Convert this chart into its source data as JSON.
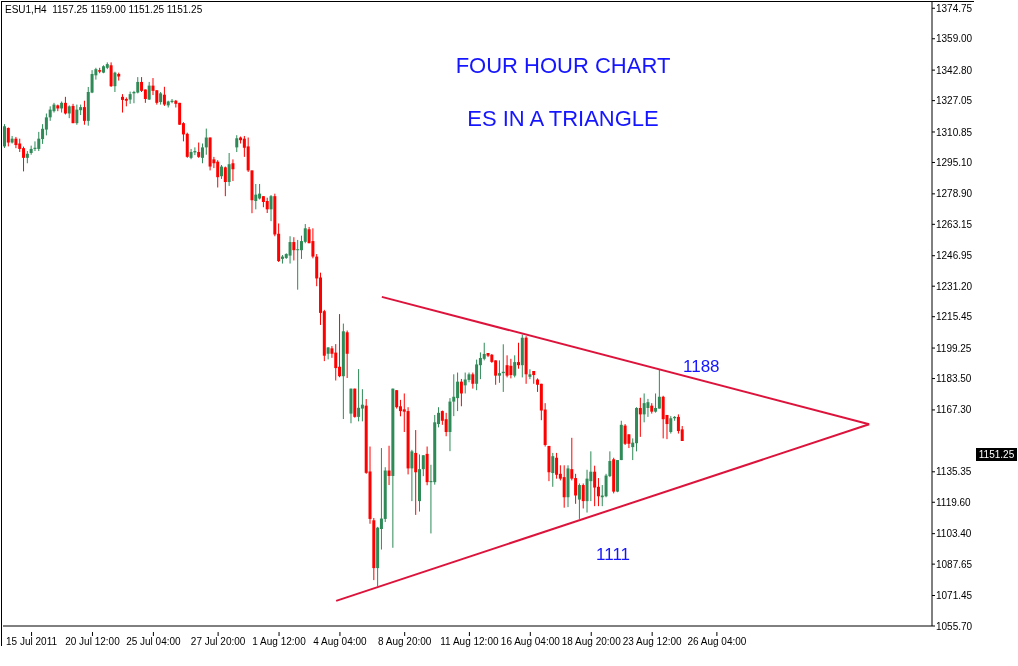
{
  "chart_data": {
    "type": "candlestick",
    "title": "FOUR HOUR CHART",
    "subtitle": "ES IN A TRIANGLE",
    "categories": [
      null,
      null,
      null,
      null,
      null,
      null,
      null,
      "15 Jul 2011",
      null,
      null,
      null,
      null,
      null,
      null,
      null,
      null,
      null,
      null,
      null,
      null,
      null,
      null,
      null,
      "20 Jul 12:00",
      null,
      null,
      null,
      null,
      null,
      null,
      null,
      null,
      null,
      null,
      null,
      null,
      null,
      null,
      null,
      "25 Jul 04:00",
      null,
      null,
      null,
      null,
      null,
      null,
      null,
      null,
      null,
      null,
      null,
      null,
      null,
      null,
      null,
      null,
      "27 Jul 20:00",
      null,
      null,
      null,
      null,
      null,
      null,
      null,
      null,
      null,
      null,
      null,
      null,
      null,
      null,
      null,
      "1 Aug 12:00",
      null,
      null,
      null,
      null,
      null,
      null,
      null,
      null,
      null,
      null,
      null,
      null,
      null,
      null,
      null,
      "4 Aug 04:00",
      null,
      null,
      null,
      null,
      null,
      null,
      null,
      null,
      null,
      null,
      null,
      null,
      null,
      null,
      null,
      null,
      "8 Aug 20:00",
      null,
      null,
      null,
      null,
      null,
      null,
      null,
      null,
      null,
      null,
      null,
      null,
      null,
      null,
      null,
      null,
      "11 Aug 12:00",
      null,
      null,
      null,
      null,
      null,
      null,
      null,
      null,
      null,
      null,
      null,
      null,
      null,
      null,
      null,
      "16 Aug 04:00",
      null,
      null,
      null,
      null,
      null,
      null,
      null,
      null,
      null,
      null,
      null,
      null,
      null,
      null,
      null,
      "18 Aug 20:00",
      null,
      null,
      null,
      null,
      null,
      null,
      null,
      null,
      null,
      null,
      null,
      null,
      null,
      null,
      null,
      "23 Aug 12:00",
      null,
      null,
      null,
      null,
      null,
      null,
      null,
      null,
      null,
      null,
      null,
      null,
      null,
      null,
      null,
      null,
      "26 Aug 04:00",
      null,
      null,
      null,
      null,
      null,
      null,
      null,
      null,
      null,
      null,
      null,
      null,
      null,
      null,
      null,
      null,
      null,
      null,
      null,
      null,
      null,
      null,
      null,
      null,
      null,
      null,
      null,
      null,
      null,
      null,
      null,
      null,
      null,
      null,
      null,
      null,
      null,
      null,
      null,
      null,
      null,
      null,
      null,
      null,
      null,
      null,
      null,
      null,
      null,
      null,
      null,
      null,
      null,
      null,
      null,
      null
    ],
    "ohlc": [
      [
        1303.4,
        1314.9,
        1302.6,
        1313.8
      ],
      [
        1312.9,
        1313.2,
        1303.4,
        1305.4
      ],
      [
        1305.4,
        1308.8,
        1304.9,
        1307.4
      ],
      [
        1307.4,
        1308.3,
        1302.5,
        1304.1
      ],
      [
        1304.9,
        1307.4,
        1300.5,
        1302.1
      ],
      [
        1302.5,
        1303.3,
        1290.5,
        1297.5
      ],
      [
        1297.5,
        1301.0,
        1294.7,
        1299.6
      ],
      [
        1300.0,
        1303.8,
        1299.1,
        1302.1
      ],
      [
        1302.1,
        1306.0,
        1301.0,
        1302.7
      ],
      [
        1302.1,
        1310.9,
        1301.0,
        1307.4
      ],
      [
        1307.2,
        1314.9,
        1304.7,
        1312.5
      ],
      [
        1312.1,
        1320.4,
        1309.1,
        1318.4
      ],
      [
        1318.4,
        1324.1,
        1316.6,
        1322.4
      ],
      [
        1321.6,
        1325.9,
        1320.9,
        1325.0
      ],
      [
        1324.6,
        1325.0,
        1321.6,
        1323.0
      ],
      [
        1323.0,
        1326.6,
        1320.9,
        1325.9
      ],
      [
        1325.9,
        1329.0,
        1319.9,
        1320.4
      ],
      [
        1320.4,
        1324.6,
        1318.0,
        1324.1
      ],
      [
        1324.3,
        1325.4,
        1315.4,
        1315.4
      ],
      [
        1315.4,
        1325.0,
        1314.6,
        1322.4
      ],
      [
        1322.1,
        1325.0,
        1319.6,
        1323.7
      ],
      [
        1323.7,
        1327.0,
        1314.6,
        1316.6
      ],
      [
        1316.6,
        1334.1,
        1314.1,
        1331.5
      ],
      [
        1331.2,
        1342.8,
        1330.9,
        1340.8
      ],
      [
        1340.1,
        1344.0,
        1337.9,
        1343.3
      ],
      [
        1342.8,
        1344.0,
        1341.2,
        1342.0
      ],
      [
        1341.5,
        1345.3,
        1341.2,
        1344.8
      ],
      [
        1344.0,
        1346.8,
        1343.3,
        1345.9
      ],
      [
        1345.3,
        1346.8,
        1334.1,
        1334.5
      ],
      [
        1334.5,
        1342.0,
        1331.5,
        1341.5
      ],
      [
        1340.8,
        1341.5,
        1337.4,
        1339.5
      ],
      [
        1329.0,
        1330.4,
        1320.9,
        1327.4
      ],
      [
        1327.9,
        1328.7,
        1324.1,
        1327.0
      ],
      [
        1327.6,
        1331.7,
        1325.4,
        1330.4
      ],
      [
        1330.8,
        1332.1,
        1325.7,
        1331.5
      ],
      [
        1331.2,
        1339.2,
        1330.8,
        1336.7
      ],
      [
        1336.7,
        1339.2,
        1331.5,
        1332.1
      ],
      [
        1332.8,
        1332.8,
        1325.9,
        1327.9
      ],
      [
        1327.6,
        1336.7,
        1327.4,
        1334.8
      ],
      [
        1334.8,
        1338.7,
        1329.9,
        1332.1
      ],
      [
        1332.4,
        1332.4,
        1325.0,
        1325.9
      ],
      [
        1326.3,
        1331.5,
        1325.0,
        1330.8
      ],
      [
        1330.1,
        1334.2,
        1324.3,
        1325.0
      ],
      [
        1324.6,
        1327.0,
        1323.5,
        1326.6
      ],
      [
        1326.3,
        1327.9,
        1325.7,
        1327.0
      ],
      [
        1327.0,
        1327.4,
        1323.5,
        1325.4
      ],
      [
        1325.9,
        1325.9,
        1314.6,
        1314.6
      ],
      [
        1315.4,
        1315.9,
        1306.0,
        1309.6
      ],
      [
        1309.9,
        1310.5,
        1297.5,
        1298.0
      ],
      [
        1297.5,
        1302.1,
        1296.8,
        1300.5
      ],
      [
        1300.3,
        1302.9,
        1298.9,
        1301.0
      ],
      [
        1300.5,
        1305.4,
        1297.5,
        1298.0
      ],
      [
        1297.5,
        1304.9,
        1294.7,
        1302.9
      ],
      [
        1302.9,
        1312.6,
        1299.1,
        1308.0
      ],
      [
        1308.0,
        1308.0,
        1291.0,
        1293.0
      ],
      [
        1296.7,
        1298.0,
        1292.2,
        1294.7
      ],
      [
        1295.5,
        1296.3,
        1282.2,
        1287.5
      ],
      [
        1288.0,
        1293.8,
        1286.6,
        1293.0
      ],
      [
        1292.6,
        1293.0,
        1277.7,
        1285.0
      ],
      [
        1285.0,
        1300.0,
        1283.0,
        1294.2
      ],
      [
        1294.7,
        1296.7,
        1285.5,
        1291.6
      ],
      [
        1302.9,
        1309.2,
        1300.5,
        1307.6
      ],
      [
        1308.0,
        1308.5,
        1304.9,
        1306.6
      ],
      [
        1307.4,
        1308.8,
        1298.0,
        1302.7
      ],
      [
        1303.4,
        1308.0,
        1290.2,
        1291.0
      ],
      [
        1291.0,
        1291.0,
        1268.9,
        1275.6
      ],
      [
        1275.2,
        1284.0,
        1270.9,
        1278.5
      ],
      [
        1276.5,
        1284.0,
        1276.0,
        1279.0
      ],
      [
        1277.7,
        1277.7,
        1272.0,
        1274.7
      ],
      [
        1275.2,
        1276.9,
        1269.0,
        1270.9
      ],
      [
        1270.9,
        1278.3,
        1264.8,
        1277.7
      ],
      [
        1277.7,
        1279.0,
        1257.0,
        1257.9
      ],
      [
        1258.3,
        1263.6,
        1243.7,
        1244.2
      ],
      [
        1245.3,
        1247.3,
        1242.9,
        1246.5
      ],
      [
        1245.8,
        1248.2,
        1245.3,
        1247.8
      ],
      [
        1247.0,
        1257.0,
        1242.9,
        1254.0
      ],
      [
        1254.0,
        1256.5,
        1244.5,
        1249.8
      ],
      [
        1249.8,
        1255.1,
        1229.4,
        1250.3
      ],
      [
        1249.8,
        1257.3,
        1245.3,
        1254.5
      ],
      [
        1254.1,
        1263.3,
        1253.4,
        1261.1
      ],
      [
        1260.6,
        1261.8,
        1253.4,
        1253.4
      ],
      [
        1254.5,
        1261.1,
        1245.6,
        1246.5
      ],
      [
        1246.5,
        1247.8,
        1231.2,
        1235.2
      ],
      [
        1235.7,
        1238.2,
        1211.2,
        1217.4
      ],
      [
        1218.3,
        1219.0,
        1192.5,
        1195.3
      ],
      [
        1196.3,
        1199.6,
        1193.4,
        1199.6
      ],
      [
        1199.1,
        1200.3,
        1194.2,
        1196.3
      ],
      [
        1196.9,
        1201.3,
        1182.5,
        1188.9
      ],
      [
        1189.6,
        1216.8,
        1184.2,
        1184.7
      ],
      [
        1184.7,
        1211.9,
        1162.6,
        1207.9
      ],
      [
        1207.4,
        1208.3,
        1183.8,
        1196.3
      ],
      [
        1165.4,
        1178.3,
        1160.4,
        1178.3
      ],
      [
        1178.3,
        1178.3,
        1163.3,
        1163.7
      ],
      [
        1163.7,
        1188.4,
        1161.4,
        1168.4
      ],
      [
        1168.0,
        1178.0,
        1161.4,
        1170.0
      ],
      [
        1169.5,
        1172.9,
        1134.3,
        1134.8
      ],
      [
        1135.5,
        1148.4,
        1108.5,
        1111.0
      ],
      [
        1110.3,
        1111.5,
        1079.4,
        1085.6
      ],
      [
        1085.6,
        1106.9,
        1076.2,
        1106.5
      ],
      [
        1105.8,
        1147.6,
        1095.2,
        1111.2
      ],
      [
        1111.0,
        1137.7,
        1109.4,
        1136.0
      ],
      [
        1136.0,
        1148.8,
        1128.5,
        1133.2
      ],
      [
        1133.2,
        1178.3,
        1096.1,
        1178.3
      ],
      [
        1177.5,
        1177.5,
        1168.0,
        1168.7
      ],
      [
        1169.2,
        1172.5,
        1164.0,
        1166.7
      ],
      [
        1167.6,
        1175.8,
        1155.9,
        1166.4
      ],
      [
        1166.7,
        1168.7,
        1134.0,
        1137.1
      ],
      [
        1137.1,
        1146.7,
        1120.2,
        1145.9
      ],
      [
        1145.1,
        1156.9,
        1113.1,
        1135.1
      ],
      [
        1120.2,
        1144.3,
        1114.8,
        1136.7
      ],
      [
        1136.7,
        1143.9,
        1133.1,
        1143.9
      ],
      [
        1144.6,
        1148.4,
        1128.4,
        1130.0
      ],
      [
        1130.0,
        1139.0,
        1103.5,
        1130.6
      ],
      [
        1130.0,
        1164.7,
        1128.7,
        1160.9
      ],
      [
        1160.0,
        1168.7,
        1158.3,
        1165.8
      ],
      [
        1166.7,
        1167.0,
        1159.6,
        1161.7
      ],
      [
        1162.5,
        1165.8,
        1153.7,
        1155.9
      ],
      [
        1155.9,
        1173.4,
        1146.0,
        1171.6
      ],
      [
        1171.6,
        1185.7,
        1164.1,
        1174.1
      ],
      [
        1173.4,
        1186.6,
        1166.7,
        1181.9
      ],
      [
        1181.9,
        1183.3,
        1169.2,
        1175.8
      ],
      [
        1180.0,
        1186.6,
        1175.8,
        1183.0
      ],
      [
        1182.8,
        1186.6,
        1181.6,
        1185.7
      ],
      [
        1185.7,
        1186.6,
        1178.3,
        1180.8
      ],
      [
        1180.8,
        1193.3,
        1177.5,
        1190.8
      ],
      [
        1190.4,
        1197.0,
        1183.2,
        1194.1
      ],
      [
        1193.7,
        1202.0,
        1192.9,
        1196.2
      ],
      [
        1196.7,
        1196.7,
        1194.6,
        1195.3
      ],
      [
        1195.8,
        1196.2,
        1191.6,
        1192.1
      ],
      [
        1192.9,
        1192.9,
        1180.3,
        1185.0
      ],
      [
        1185.0,
        1192.9,
        1181.3,
        1186.3
      ],
      [
        1186.3,
        1201.2,
        1176.6,
        1187.0
      ],
      [
        1190.4,
        1195.5,
        1184.1,
        1185.0
      ],
      [
        1190.1,
        1193.7,
        1183.6,
        1185.3
      ],
      [
        1185.0,
        1195.5,
        1184.1,
        1192.0
      ],
      [
        1192.0,
        1202.0,
        1188.6,
        1190.4
      ],
      [
        1190.4,
        1206.2,
        1184.1,
        1204.6
      ],
      [
        1204.6,
        1205.4,
        1180.8,
        1185.7
      ],
      [
        1184.4,
        1188.3,
        1183.2,
        1185.7
      ],
      [
        1187.4,
        1187.4,
        1180.8,
        1185.3
      ],
      [
        1183.0,
        1183.6,
        1176.6,
        1180.3
      ],
      [
        1180.8,
        1180.8,
        1162.0,
        1167.0
      ],
      [
        1167.5,
        1170.8,
        1148.4,
        1149.2
      ],
      [
        1148.7,
        1148.7,
        1130.5,
        1135.1
      ],
      [
        1134.7,
        1145.1,
        1127.6,
        1143.4
      ],
      [
        1142.6,
        1145.1,
        1131.8,
        1133.8
      ],
      [
        1134.3,
        1138.7,
        1130.9,
        1131.8
      ],
      [
        1132.6,
        1138.7,
        1116.8,
        1122.2
      ],
      [
        1122.2,
        1138.7,
        1117.1,
        1137.1
      ],
      [
        1136.7,
        1152.9,
        1130.9,
        1131.8
      ],
      [
        1132.1,
        1134.3,
        1118.8,
        1123.1
      ],
      [
        1121.0,
        1129.3,
        1111.0,
        1128.5
      ],
      [
        1128.5,
        1129.3,
        1116.4,
        1120.2
      ],
      [
        1120.2,
        1136.4,
        1114.3,
        1131.8
      ],
      [
        1130.5,
        1145.9,
        1120.2,
        1135.4
      ],
      [
        1135.4,
        1138.5,
        1117.6,
        1127.2
      ],
      [
        1127.6,
        1132.1,
        1117.6,
        1122.7
      ],
      [
        1122.2,
        1128.5,
        1117.6,
        1123.1
      ],
      [
        1122.7,
        1134.3,
        1122.2,
        1133.4
      ],
      [
        1133.1,
        1145.9,
        1132.6,
        1140.9
      ],
      [
        1141.8,
        1142.6,
        1124.2,
        1125.1
      ],
      [
        1125.1,
        1141.4,
        1124.8,
        1141.4
      ],
      [
        1141.4,
        1161.7,
        1141.4,
        1159.6
      ],
      [
        1159.2,
        1160.0,
        1149.2,
        1149.8
      ],
      [
        1154.7,
        1154.7,
        1147.6,
        1149.8
      ],
      [
        1148.1,
        1152.6,
        1141.4,
        1150.4
      ],
      [
        1150.1,
        1168.7,
        1145.9,
        1168.3
      ],
      [
        1168.3,
        1173.6,
        1153.4,
        1165.0
      ],
      [
        1165.0,
        1175.8,
        1160.9,
        1170.8
      ],
      [
        1168.3,
        1173.0,
        1163.7,
        1171.3
      ],
      [
        1169.5,
        1170.8,
        1165.4,
        1166.4
      ],
      [
        1166.4,
        1175.8,
        1165.9,
        1168.3
      ],
      [
        1168.0,
        1188.0,
        1168.0,
        1174.1
      ],
      [
        1174.1,
        1174.6,
        1152.6,
        1162.5
      ],
      [
        1164.7,
        1164.7,
        1152.2,
        1160.0
      ],
      [
        1155.9,
        1164.1,
        1155.1,
        1163.0
      ],
      [
        1163.0,
        1164.1,
        1161.7,
        1163.7
      ],
      [
        1163.7,
        1165.0,
        1155.1,
        1156.4
      ],
      [
        1157.25,
        1159.0,
        1151.25,
        1151.25
      ],
      null,
      null,
      null,
      null,
      null,
      null,
      null,
      null,
      null,
      null,
      null,
      null,
      null,
      null,
      null,
      null,
      null,
      null,
      null,
      null,
      null,
      null,
      null,
      null,
      null,
      null,
      null,
      null,
      null,
      null,
      null,
      null,
      null,
      null,
      null,
      null,
      null,
      null,
      null,
      null,
      null,
      null,
      null,
      null,
      null,
      null,
      null,
      null,
      null,
      null,
      null,
      null,
      null,
      null,
      null,
      null,
      null,
      null,
      null,
      null,
      null,
      null,
      null,
      null,
      null
    ],
    "colors": [
      "#2e8b57",
      "#ff0000",
      "#2e8b57",
      "#ff0000",
      "#ff0000",
      "#ff0000",
      "#2e8b57",
      "#2e8b57",
      "#2e8b57",
      "#2e8b57",
      "#2e8b57",
      "#2e8b57",
      "#2e8b57",
      "#2e8b57",
      "#ff0000",
      "#2e8b57",
      "#ff0000",
      "#2e8b57",
      "#ff0000",
      "#2e8b57",
      "#2e8b57",
      "#ff0000",
      "#2e8b57",
      "#2e8b57",
      "#2e8b57",
      "#ff0000",
      "#2e8b57",
      "#2e8b57",
      "#ff0000",
      "#2e8b57",
      "#ff0000",
      "#ff0000",
      "#ff0000",
      "#2e8b57",
      "#2e8b57",
      "#2e8b57",
      "#ff0000",
      "#ff0000",
      "#2e8b57",
      "#ff0000",
      "#ff0000",
      "#2e8b57",
      "#ff0000",
      "#2e8b57",
      "#2e8b57",
      "#ff0000",
      "#ff0000",
      "#ff0000",
      "#ff0000",
      "#2e8b57",
      "#2e8b57",
      "#ff0000",
      "#2e8b57",
      "#2e8b57",
      "#ff0000",
      "#ff0000",
      "#ff0000",
      "#2e8b57",
      "#ff0000",
      "#2e8b57",
      "#ff0000",
      "#2e8b57",
      "#ff0000",
      "#ff0000",
      "#ff0000",
      "#ff0000",
      "#2e8b57",
      "#2e8b57",
      "#ff0000",
      "#ff0000",
      "#2e8b57",
      "#ff0000",
      "#ff0000",
      "#2e8b57",
      "#2e8b57",
      "#2e8b57",
      "#ff0000",
      "#2e8b57",
      "#2e8b57",
      "#2e8b57",
      "#ff0000",
      "#ff0000",
      "#ff0000",
      "#ff0000",
      "#ff0000",
      "#2e8b57",
      "#ff0000",
      "#ff0000",
      "#ff0000",
      "#2e8b57",
      "#ff0000",
      "#2e8b57",
      "#ff0000",
      "#2e8b57",
      "#2e8b57",
      "#ff0000",
      "#ff0000",
      "#ff0000",
      "#2e8b57",
      "#2e8b57",
      "#2e8b57",
      "#ff0000",
      "#2e8b57",
      "#ff0000",
      "#ff0000",
      "#ff0000",
      "#ff0000",
      "#2e8b57",
      "#ff0000",
      "#2e8b57",
      "#2e8b57",
      "#ff0000",
      "#2e8b57",
      "#2e8b57",
      "#2e8b57",
      "#ff0000",
      "#ff0000",
      "#2e8b57",
      "#2e8b57",
      "#2e8b57",
      "#ff0000",
      "#2e8b57",
      "#2e8b57",
      "#ff0000",
      "#2e8b57",
      "#2e8b57",
      "#2e8b57",
      "#ff0000",
      "#ff0000",
      "#ff0000",
      "#2e8b57",
      "#2e8b57",
      "#ff0000",
      "#ff0000",
      "#2e8b57",
      "#ff0000",
      "#2e8b57",
      "#ff0000",
      "#2e8b57",
      "#ff0000",
      "#ff0000",
      "#ff0000",
      "#ff0000",
      "#ff0000",
      "#2e8b57",
      "#ff0000",
      "#ff0000",
      "#ff0000",
      "#2e8b57",
      "#ff0000",
      "#ff0000",
      "#2e8b57",
      "#ff0000",
      "#2e8b57",
      "#2e8b57",
      "#ff0000",
      "#ff0000",
      "#2e8b57",
      "#2e8b57",
      "#2e8b57",
      "#ff0000",
      "#2e8b57",
      "#2e8b57",
      "#ff0000",
      "#ff0000",
      "#2e8b57",
      "#2e8b57",
      "#ff0000",
      "#2e8b57",
      "#2e8b57",
      "#ff0000",
      "#2e8b57",
      "#2e8b57",
      "#ff0000",
      "#ff0000",
      "#2e8b57",
      "#2e8b57",
      "#ff0000",
      "#ff0000",
      null,
      null,
      null,
      null,
      null,
      null,
      null,
      null,
      null,
      null,
      null,
      null,
      null,
      null,
      null,
      null,
      null,
      null,
      null,
      null,
      null,
      null,
      null,
      null,
      null,
      null,
      null,
      null,
      null,
      null,
      null,
      null,
      null,
      null,
      null,
      null,
      null,
      null,
      null,
      null,
      null,
      null,
      null,
      null,
      null,
      null,
      null,
      null,
      null,
      null,
      null,
      null,
      null,
      null,
      null,
      null,
      null,
      null,
      null,
      null,
      null,
      null,
      null,
      null,
      null
    ],
    "series": [
      {
        "type": "line",
        "color": "#dc143c",
        "values": [
          null,
          null,
          null,
          null,
          null,
          null,
          null,
          null,
          null,
          null,
          null,
          null,
          null,
          null,
          null,
          null,
          null,
          null,
          null,
          null,
          null,
          null,
          null,
          null,
          null,
          null,
          null,
          null,
          null,
          null,
          null,
          null,
          null,
          null,
          null,
          null,
          null,
          null,
          null,
          null,
          null,
          null,
          null,
          null,
          null,
          null,
          null,
          null,
          null,
          null,
          null,
          null,
          null,
          null,
          null,
          null,
          null,
          null,
          null,
          null,
          null,
          null,
          null,
          null,
          null,
          null,
          null,
          null,
          null,
          null,
          null,
          null,
          null,
          null,
          null,
          null,
          null,
          null,
          null,
          null,
          null,
          null,
          null,
          null,
          null,
          null,
          null,
          null,
          null,
          null,
          null,
          null,
          null,
          null,
          null,
          null,
          null,
          null,
          null,
          1225.7,
          null,
          null,
          null,
          null,
          null,
          null,
          null,
          null,
          null,
          null,
          null,
          null,
          null,
          null,
          null,
          null,
          null,
          null,
          null,
          null,
          null,
          null,
          null,
          null,
          null,
          null,
          null,
          null,
          null,
          null,
          null,
          null,
          null,
          null,
          null,
          null,
          null,
          null,
          null,
          null,
          null,
          null,
          null,
          null,
          null,
          null,
          null,
          null,
          null,
          null,
          null,
          null,
          null,
          null,
          null,
          null,
          null,
          null,
          null,
          null,
          null,
          null,
          null,
          null,
          null,
          null,
          null,
          null,
          null,
          null,
          null,
          null,
          null,
          null,
          null,
          null,
          null,
          null,
          null,
          null,
          null,
          null,
          null,
          null,
          null,
          null,
          null,
          null,
          null,
          null,
          null,
          null,
          null,
          null,
          null,
          null,
          null,
          null,
          null,
          null,
          null,
          null,
          null,
          null,
          null,
          null,
          null,
          null,
          null,
          null,
          null,
          null,
          null,
          null,
          null,
          null,
          null,
          null,
          null,
          null,
          null,
          null,
          null,
          null,
          null,
          null,
          null,
          1159.9,
          null,
          null,
          null,
          null,
          null,
          null,
          null,
          null,
          null,
          null,
          null,
          null,
          null,
          null,
          null,
          null
        ]
      },
      {
        "type": "line",
        "color": "#dc143c",
        "values": [
          null,
          null,
          null,
          null,
          null,
          null,
          null,
          null,
          null,
          null,
          null,
          null,
          null,
          null,
          null,
          null,
          null,
          null,
          null,
          null,
          null,
          null,
          null,
          null,
          null,
          null,
          null,
          null,
          null,
          null,
          null,
          null,
          null,
          null,
          null,
          null,
          null,
          null,
          null,
          null,
          null,
          null,
          null,
          null,
          null,
          null,
          null,
          null,
          null,
          null,
          null,
          null,
          null,
          null,
          null,
          null,
          null,
          null,
          null,
          null,
          null,
          null,
          null,
          null,
          null,
          null,
          null,
          null,
          null,
          null,
          null,
          null,
          null,
          null,
          null,
          null,
          null,
          null,
          null,
          null,
          null,
          null,
          null,
          null,
          null,
          null,
          null,
          1068.7,
          null,
          null,
          null,
          null,
          null,
          null,
          null,
          null,
          null,
          null,
          null,
          null,
          null,
          null,
          null,
          null,
          null,
          null,
          null,
          null,
          null,
          null,
          null,
          null,
          null,
          null,
          null,
          null,
          null,
          null,
          null,
          null,
          null,
          null,
          null,
          null,
          null,
          null,
          null,
          null,
          null,
          null,
          null,
          null,
          null,
          null,
          null,
          null,
          null,
          null,
          null,
          null,
          null,
          null,
          null,
          null,
          null,
          null,
          null,
          null,
          null,
          null,
          null,
          null,
          null,
          null,
          null,
          null,
          null,
          null,
          null,
          null,
          null,
          null,
          null,
          null,
          null,
          null,
          null,
          null,
          null,
          null,
          null,
          null,
          null,
          null,
          null,
          null,
          null,
          null,
          null,
          null,
          null,
          null,
          null,
          null,
          null,
          null,
          null,
          null,
          null,
          null,
          null,
          null,
          null,
          null,
          null,
          null,
          null,
          null,
          null,
          null,
          null,
          null,
          null,
          null,
          null,
          null,
          null,
          null,
          null,
          null,
          null,
          null,
          null,
          null,
          null,
          null,
          null,
          null,
          null,
          null,
          null,
          null,
          null,
          null,
          null,
          null,
          null,
          1159.9,
          null,
          null,
          null,
          null,
          null,
          null,
          null,
          null,
          null,
          null,
          null,
          null,
          null,
          null,
          null,
          null
        ]
      }
    ],
    "ylim": [
      1055.7,
      1378.5
    ],
    "yticks": [
      1374.75,
      {
        "value": 1359,
        "label": "1359.00"
      },
      {
        "value": 1342.8,
        "label": "1342.80"
      },
      1327.05,
      1310.85,
      {
        "value": 1295.1,
        "label": "1295.10"
      },
      {
        "value": 1278.9,
        "label": "1278.90"
      },
      1263.15,
      1246.95,
      {
        "value": 1231.2,
        "label": "1231.20"
      },
      1215.45,
      1199.25,
      {
        "value": 1183.5,
        "label": "1183.50"
      },
      {
        "value": 1167.3,
        "label": "1167.30"
      },
      1135.35,
      {
        "value": 1119.6,
        "label": "1119.60"
      },
      {
        "value": 1103.4,
        "label": "1103.40"
      },
      1087.65,
      1071.45,
      {
        "value": 1055.7,
        "label": "1055.70"
      }
    ],
    "annotations": [
      "ESU1,H4  1157.25 1159.00 1151.25 1151.25",
      "1188",
      "1111",
      "1151.25"
    ]
  }
}
